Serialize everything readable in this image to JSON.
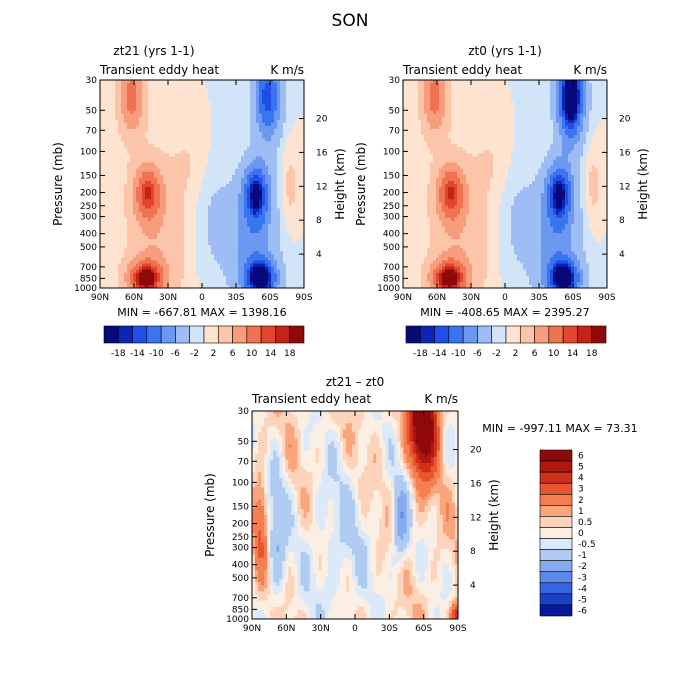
{
  "title": "SON",
  "chart_data": [
    {
      "type": "heatmap",
      "title": "zt21 (yrs 1-1)",
      "left_label": "Transient eddy heat",
      "right_label": "K m/s",
      "ylabel": "Pressure (mb)",
      "y2label": "Height (km)",
      "xticks": [
        "90N",
        "60N",
        "30N",
        "0",
        "30S",
        "60S",
        "90S"
      ],
      "yticks": [
        30,
        50,
        70,
        100,
        150,
        200,
        250,
        300,
        400,
        500,
        700,
        850,
        1000
      ],
      "y2ticks": [
        4,
        8,
        12,
        16,
        20
      ],
      "stats": "MIN = -667.81   MAX = 1398.16",
      "colorbar_labels": [
        "-18",
        "-14",
        "-10",
        "-6",
        "-2",
        "2",
        "6",
        "10",
        "14",
        "18"
      ]
    },
    {
      "type": "heatmap",
      "title": "zt0 (yrs 1-1)",
      "left_label": "Transient eddy heat",
      "right_label": "K m/s",
      "ylabel": "Pressure (mb)",
      "y2label": "Height (km)",
      "xticks": [
        "90N",
        "60N",
        "30N",
        "0",
        "30S",
        "60S",
        "90S"
      ],
      "yticks": [
        30,
        50,
        70,
        100,
        150,
        200,
        250,
        300,
        400,
        500,
        700,
        850,
        1000
      ],
      "y2ticks": [
        4,
        8,
        12,
        16,
        20
      ],
      "stats": "MIN = -408.65   MAX = 2395.27",
      "colorbar_labels": [
        "-18",
        "-14",
        "-10",
        "-6",
        "-2",
        "2",
        "6",
        "10",
        "14",
        "18"
      ]
    },
    {
      "type": "heatmap",
      "title": "zt21 – zt0",
      "left_label": "Transient eddy heat",
      "right_label": "K m/s",
      "ylabel": "Pressure (mb)",
      "y2label": "Height (km)",
      "xticks": [
        "90N",
        "60N",
        "30N",
        "0",
        "30S",
        "60S",
        "90S"
      ],
      "yticks": [
        30,
        50,
        70,
        100,
        150,
        200,
        250,
        300,
        400,
        500,
        700,
        850,
        1000
      ],
      "y2ticks": [
        4,
        8,
        12,
        16,
        20
      ],
      "stats": "MIN = -997.11   MAX =  73.31",
      "colorbar_labels": [
        "6",
        "5",
        "4",
        "3",
        "2",
        "1",
        "0.5",
        "0",
        "-0.5",
        "-1",
        "-2",
        "-3",
        "-4",
        "-5",
        "-6"
      ]
    }
  ],
  "colors": {
    "div_scale": [
      "#08087a",
      "#0b25b8",
      "#1f4fe6",
      "#3b74ef",
      "#6b98f0",
      "#9dbdf4",
      "#d2e4f8",
      "#fde3d0",
      "#fcc4a8",
      "#f79d7c",
      "#ef7352",
      "#e0472c",
      "#c4231a",
      "#8e0a0a"
    ],
    "diff_scale": [
      "#8e0a0a",
      "#b0180f",
      "#d02f1c",
      "#e8552f",
      "#f5804f",
      "#fba57d",
      "#fdd4bb",
      "#fbeee2",
      "#dce9f8",
      "#b0cbf2",
      "#85aaef",
      "#5d89ec",
      "#3665e2",
      "#1a42c9",
      "#08189a"
    ],
    "bar_colors_13": [
      "#08087a",
      "#0b25b8",
      "#1f4fe6",
      "#3b74ef",
      "#6b98f0",
      "#9dbdf4",
      "#d2e4f8",
      "#fde3d0",
      "#fcc4a8",
      "#f79d7c",
      "#ef7352",
      "#e0472c",
      "#c4231a",
      "#8e0a0a"
    ]
  }
}
